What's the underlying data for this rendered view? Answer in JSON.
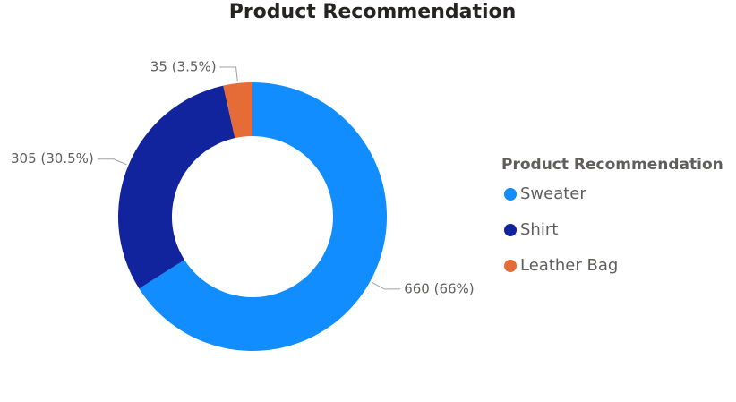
{
  "chart_data": {
    "type": "donut",
    "title": "Product Recommendation",
    "legend_title": "Product Recommendation",
    "categories": [
      "Sweater",
      "Shirt",
      "Leather Bag"
    ],
    "values": [
      660,
      305,
      35
    ],
    "value_labels": [
      "660 (66%)",
      "305 (30.5%)",
      "35 (3.5%)"
    ],
    "colors": [
      "#118DFF",
      "#12239E",
      "#E66C37"
    ],
    "legend": "right"
  }
}
